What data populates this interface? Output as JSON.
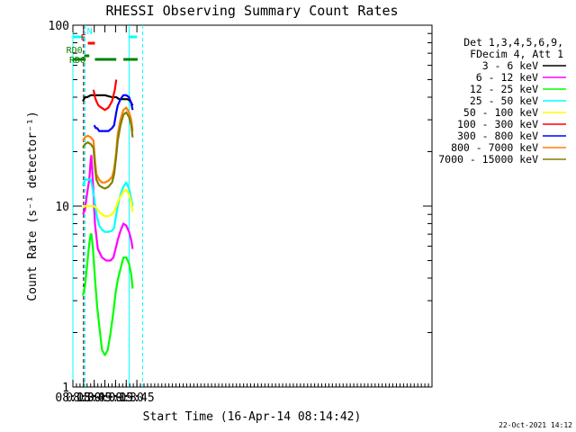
{
  "chart_data": {
    "type": "line",
    "title": "RHESSI Observing Summary Count Rates",
    "xlabel": "Start Time (16-Apr-14 08:14:42)",
    "ylabel": "Count Rate (s⁻¹ detector⁻¹)",
    "yscale": "log",
    "ylim": [
      1,
      100
    ],
    "xlim_minutes": [
      495,
      1000
    ],
    "x_ticks": [
      {
        "m": 495,
        "label": "08:15"
      },
      {
        "m": 510,
        "label": "08:30"
      },
      {
        "m": 525,
        "label": "08:45"
      },
      {
        "m": 540,
        "label": "09:00"
      },
      {
        "m": 555,
        "label": "09:15"
      },
      {
        "m": 570,
        "label": "09:30"
      },
      {
        "m": 585,
        "label": "09:45"
      }
    ],
    "y_ticks": [
      {
        "v": 1,
        "label": "1"
      },
      {
        "v": 10,
        "label": "10"
      },
      {
        "v": 100,
        "label": "100"
      }
    ],
    "legend": {
      "position": "right",
      "header": [
        "Det 1,3,4,5,6,9,",
        "FDecim 4, Att 1"
      ],
      "entries": [
        {
          "label": "3 - 6 keV",
          "color": "#000000"
        },
        {
          "label": "6 - 12 keV",
          "color": "#ff00ff"
        },
        {
          "label": "12 - 25 keV",
          "color": "#00ff00"
        },
        {
          "label": "25 - 50 keV",
          "color": "#00ffff"
        },
        {
          "label": "50 - 100 keV",
          "color": "#ffff00"
        },
        {
          "label": "100 - 300 keV",
          "color": "#ff0000"
        },
        {
          "label": "300 - 800 keV",
          "color": "#0000ff"
        },
        {
          "label": "800 - 7000 keV",
          "color": "#ff8000"
        },
        {
          "label": "7000 - 15000 keV",
          "color": "#808000"
        }
      ]
    },
    "flags": [
      {
        "label": "N",
        "color": "#00ffff",
        "segments": [
          [
            495,
            511
          ],
          [
            574,
            585
          ]
        ]
      },
      {
        "label": "F",
        "color": "#ff0000",
        "segments": [
          [
            516,
            526
          ]
        ]
      },
      {
        "label": "RD0",
        "color": "#008000",
        "segments": [
          [
            511,
            518
          ]
        ]
      },
      {
        "label": "RD6",
        "color": "#008000",
        "segments": [
          [
            495,
            513
          ],
          [
            526,
            556
          ],
          [
            566,
            586
          ]
        ]
      }
    ],
    "vlines": [
      {
        "m": 495,
        "color": "#00ffff",
        "style": "solid"
      },
      {
        "m": 512,
        "color": "#00ffff",
        "style": "dashed"
      },
      {
        "m": 574,
        "color": "#00ffff",
        "style": "solid"
      },
      {
        "m": 593,
        "color": "#00ffff",
        "style": "dashed"
      },
      {
        "m": 510,
        "color": "#000000",
        "style": "dashed"
      }
    ],
    "series": [
      {
        "name": "3 - 6 keV",
        "color": "#000000",
        "x": [
          509,
          512,
          515,
          520,
          525,
          530,
          540,
          550,
          556,
          560,
          565,
          570,
          572,
          576,
          579
        ],
        "y": [
          38,
          40,
          40,
          41,
          41,
          41,
          41,
          40,
          40,
          39,
          39,
          39,
          39,
          38,
          36
        ]
      },
      {
        "name": "100 - 300 keV",
        "color": "#ff0000",
        "x": [
          524,
          526,
          528,
          531,
          535,
          540,
          545,
          550,
          554,
          556
        ],
        "y": [
          44,
          40,
          38,
          36,
          35,
          34,
          35,
          38,
          44,
          50
        ]
      },
      {
        "name": "300 - 800 keV",
        "color": "#0000ff",
        "x": [
          525,
          527,
          529,
          532,
          536,
          540,
          545,
          550,
          553,
          556,
          558,
          562,
          566,
          570,
          574,
          577,
          579
        ],
        "y": [
          28,
          27,
          27,
          26,
          26,
          26,
          26,
          27,
          28,
          33,
          36,
          39,
          41,
          41,
          40,
          37,
          34
        ]
      },
      {
        "name": "6 - 12 keV",
        "color": "#ff00ff",
        "x": [
          509,
          512,
          514,
          516,
          518,
          520,
          521,
          523,
          526,
          530,
          536,
          542,
          548,
          552,
          555,
          558,
          562,
          566,
          570,
          574,
          577,
          579
        ],
        "y": [
          9,
          9.5,
          11,
          12.5,
          14,
          18,
          19,
          14,
          8,
          5.8,
          5.2,
          5,
          5,
          5.2,
          5.8,
          6.5,
          7.3,
          8,
          7.8,
          7.2,
          6.5,
          5.8
        ]
      },
      {
        "name": "12 - 25 keV",
        "color": "#00ff00",
        "x": [
          509,
          512,
          514,
          516,
          518,
          520,
          521,
          523,
          526,
          529,
          532,
          536,
          540,
          544,
          548,
          552,
          555,
          558,
          562,
          566,
          570,
          574,
          577,
          579
        ],
        "y": [
          3.2,
          3.6,
          4.3,
          5.2,
          6.2,
          7,
          7,
          6,
          4,
          2.8,
          2.2,
          1.6,
          1.5,
          1.6,
          2,
          2.6,
          3.3,
          3.9,
          4.5,
          5.2,
          5.2,
          4.8,
          4.2,
          3.5
        ]
      },
      {
        "name": "25 - 50 keV",
        "color": "#00ffff",
        "x": [
          509,
          512,
          514,
          516,
          518,
          520,
          522,
          525,
          528,
          532,
          536,
          540,
          545,
          550,
          553,
          556,
          558,
          562,
          566,
          570,
          574,
          577,
          579
        ],
        "y": [
          13,
          14,
          14,
          14,
          14,
          14,
          13,
          11,
          9,
          7.8,
          7.4,
          7.2,
          7.2,
          7.3,
          7.6,
          9,
          10,
          11.6,
          12.8,
          13.5,
          12.5,
          11,
          10
        ]
      },
      {
        "name": "50 - 100 keV",
        "color": "#ffff00",
        "x": [
          509,
          512,
          516,
          520,
          524,
          528,
          532,
          536,
          540,
          545,
          550,
          553,
          556,
          558,
          562,
          566,
          570,
          574,
          577,
          579
        ],
        "y": [
          9.8,
          10,
          10,
          10,
          10,
          9.8,
          9.3,
          9,
          8.8,
          8.8,
          9,
          9.3,
          10,
          10.5,
          11.3,
          12,
          12.3,
          11.6,
          10.5,
          9.3
        ]
      },
      {
        "name": "800 - 7000 keV",
        "color": "#ff8000",
        "x": [
          509,
          512,
          516,
          520,
          524,
          526,
          528,
          532,
          536,
          540,
          545,
          550,
          553,
          556,
          558,
          562,
          566,
          570,
          574,
          577,
          579
        ],
        "y": [
          23,
          24,
          24.5,
          24,
          23,
          18,
          15,
          14,
          13.5,
          13.5,
          13.8,
          14.5,
          16,
          20,
          25,
          30,
          34,
          35,
          33,
          30,
          26
        ]
      },
      {
        "name": "7000 - 15000 keV",
        "color": "#808000",
        "x": [
          509,
          512,
          516,
          520,
          524,
          526,
          528,
          532,
          536,
          540,
          545,
          550,
          553,
          556,
          558,
          562,
          566,
          570,
          574,
          577,
          579
        ],
        "y": [
          21,
          22,
          22.5,
          22,
          21,
          16.5,
          14,
          13,
          12.7,
          12.5,
          12.8,
          13.5,
          15,
          19,
          23,
          28,
          32,
          33,
          31,
          28,
          24
        ]
      }
    ]
  },
  "footer": {
    "date_stamp": "22-Oct-2021 14:12"
  }
}
